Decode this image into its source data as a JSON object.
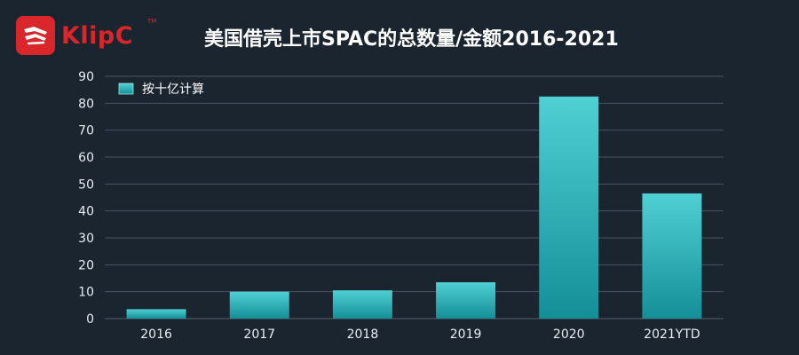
{
  "brand": {
    "name": "KlipC",
    "trademark": "TM"
  },
  "colors": {
    "background": "#1b2530",
    "brand_red": "#d8262a",
    "bar_top": "#4fd0d3",
    "bar_bottom": "#148f98",
    "grid": "#4a5560"
  },
  "chart_data": {
    "type": "bar",
    "title": "美国借壳上市SPAC的总数量/金额2016-2021",
    "categories": [
      "2016",
      "2017",
      "2018",
      "2019",
      "2020",
      "2021YTD"
    ],
    "series": [
      {
        "name": "按十亿计算",
        "values": [
          3.5,
          10,
          10.5,
          13.5,
          82.5,
          46.5
        ]
      }
    ],
    "xlabel": "",
    "ylabel": "",
    "ylim": [
      0,
      90
    ],
    "yticks": [
      0,
      10,
      20,
      30,
      40,
      50,
      60,
      70,
      80,
      90
    ],
    "grid": true,
    "legend_position": "top-left"
  }
}
